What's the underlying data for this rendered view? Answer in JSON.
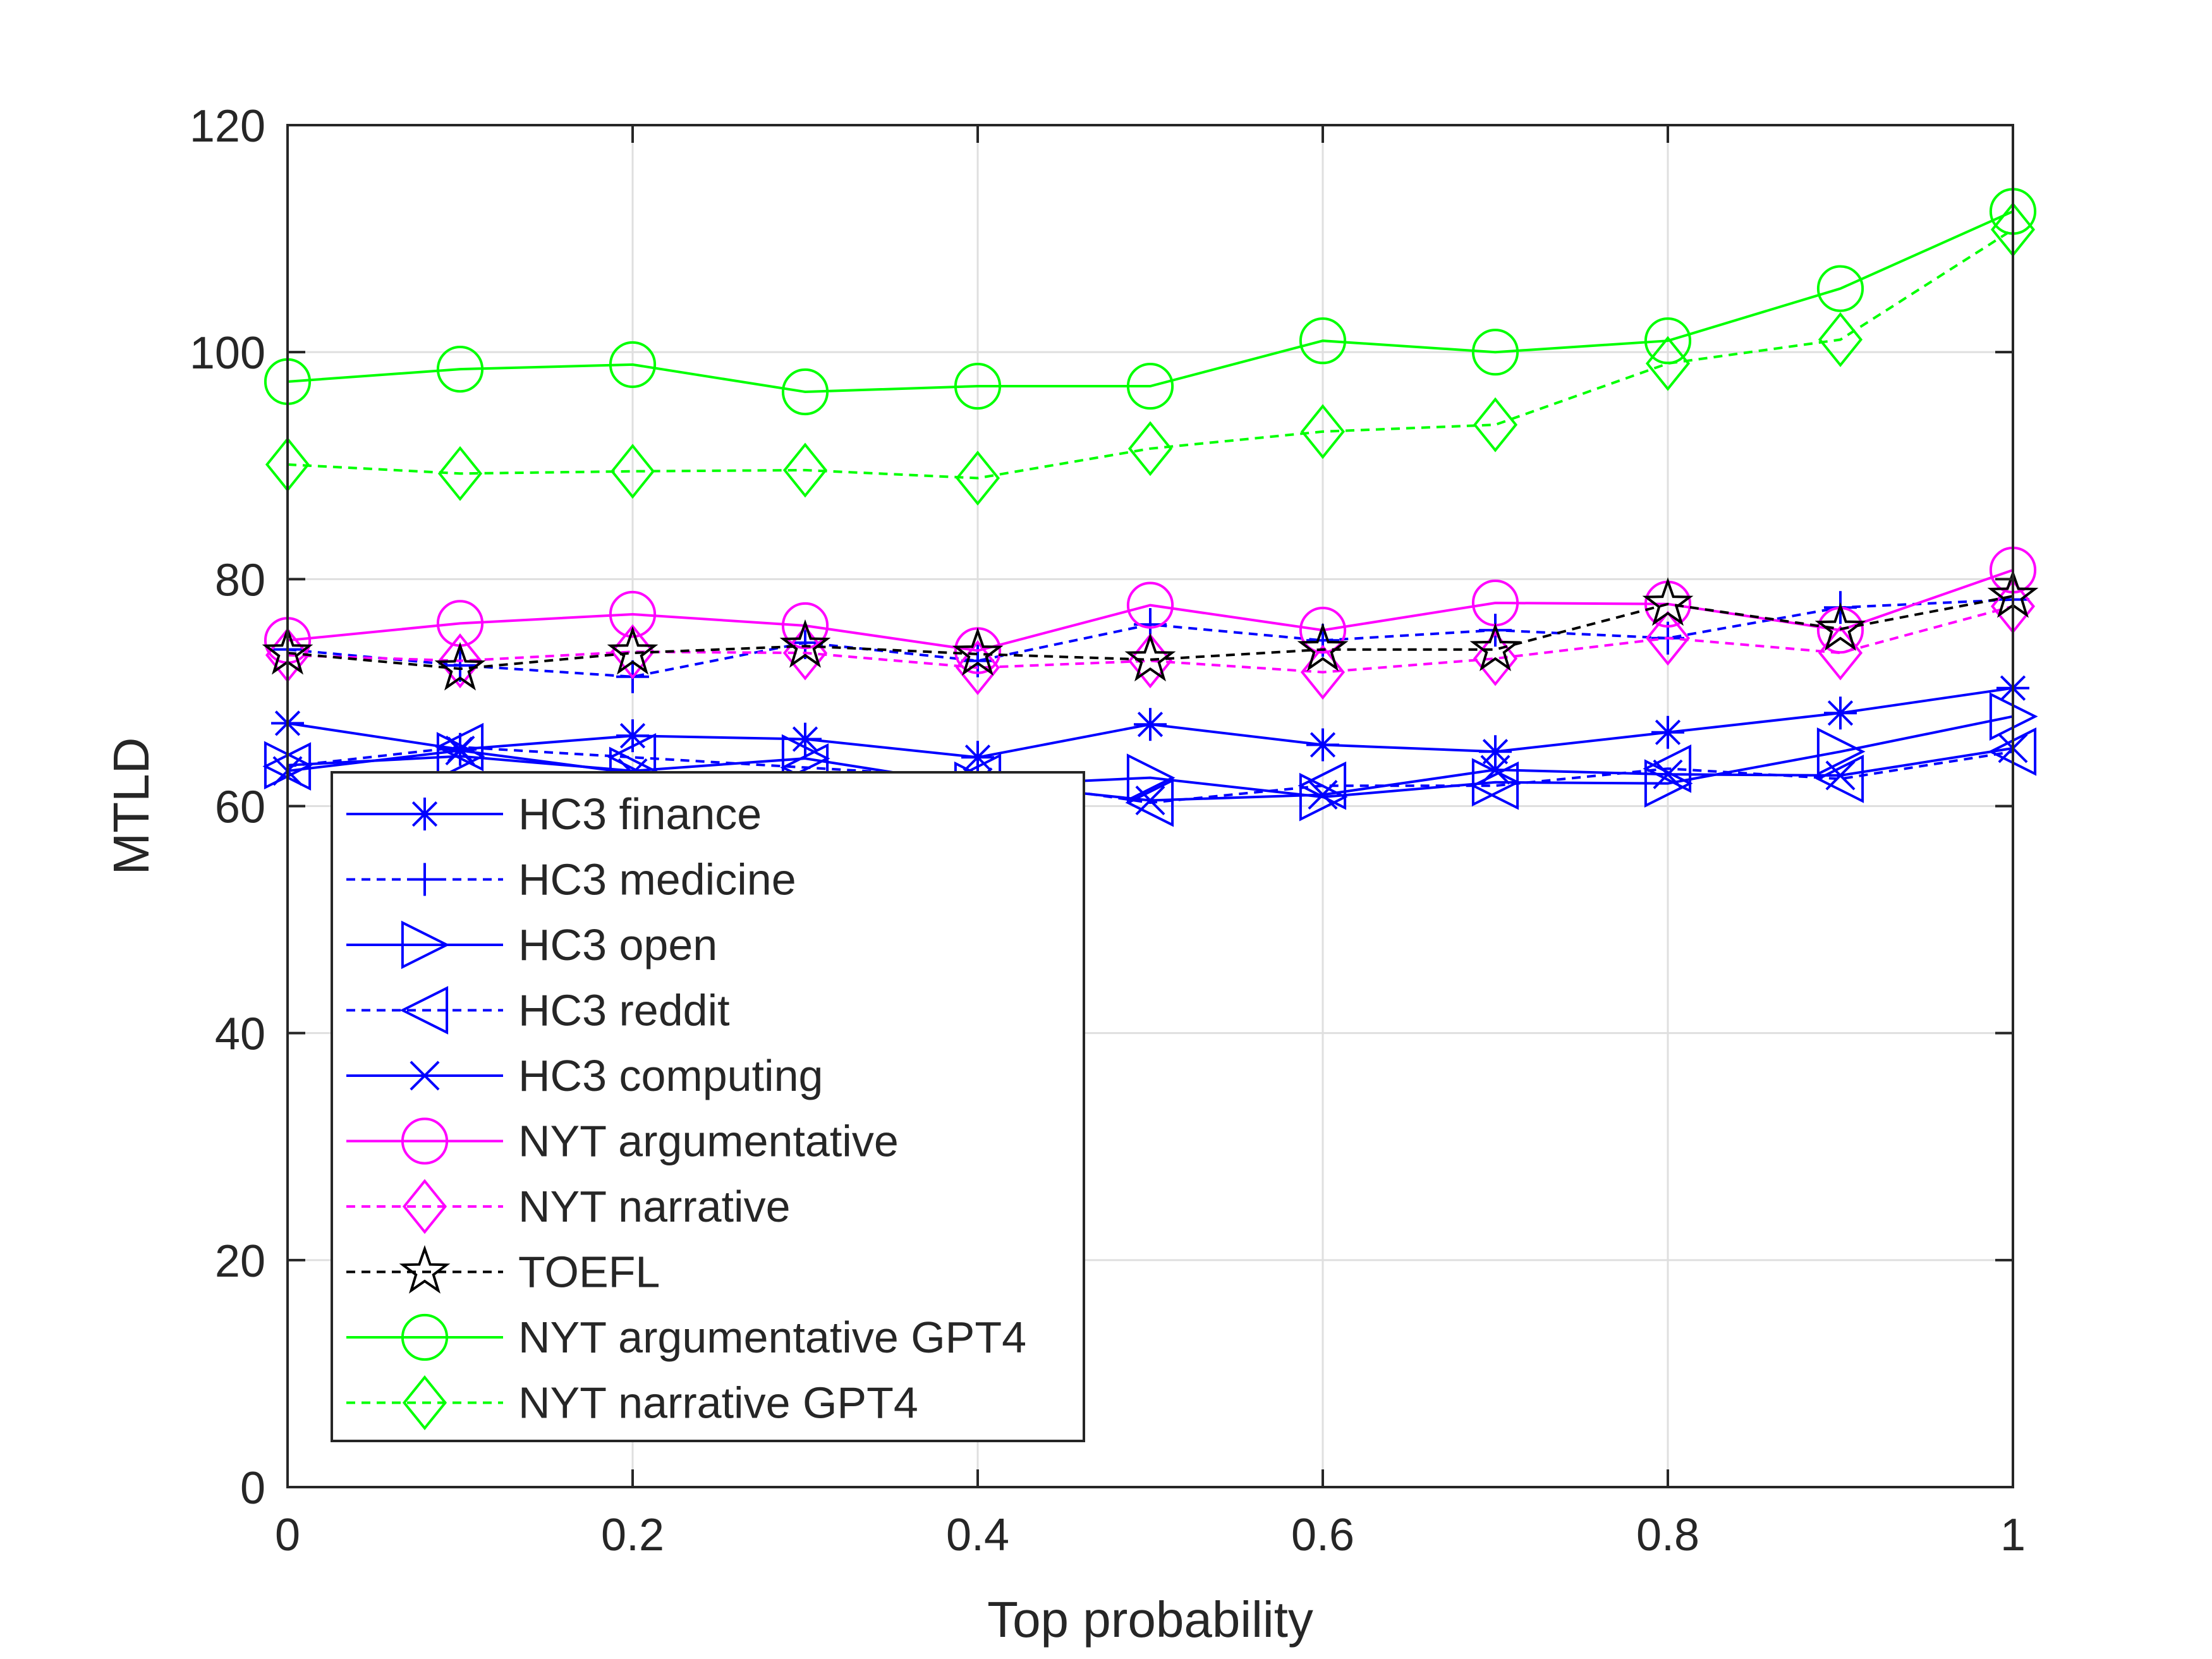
{
  "chart_data": {
    "type": "line",
    "title": "",
    "xlabel": "Top probability",
    "ylabel": "MTLD",
    "xlim": [
      0,
      1
    ],
    "ylim": [
      0,
      120
    ],
    "xticks": [
      0,
      0.2,
      0.4,
      0.6,
      0.8,
      1
    ],
    "xtick_labels": [
      "0",
      "0.2",
      "0.4",
      "0.6",
      "0.8",
      "1"
    ],
    "yticks": [
      0,
      20,
      40,
      60,
      80,
      100,
      120
    ],
    "ytick_labels": [
      "0",
      "20",
      "40",
      "60",
      "80",
      "100",
      "120"
    ],
    "grid": true,
    "legend_position": "lower-left",
    "x": [
      0,
      0.1,
      0.2,
      0.3,
      0.4,
      0.5,
      0.6,
      0.7,
      0.8,
      0.9,
      1
    ],
    "series": [
      {
        "name": "HC3 finance",
        "color": "#0000ff",
        "dash": "solid",
        "marker": "asterisk",
        "values": [
          67.3,
          65.0,
          66.2,
          65.9,
          64.3,
          67.2,
          65.4,
          64.8,
          66.5,
          68.2,
          70.4
        ]
      },
      {
        "name": "HC3 medicine",
        "color": "#0000ff",
        "dash": "dashed",
        "marker": "plus",
        "values": [
          73.8,
          72.4,
          71.4,
          74.4,
          72.8,
          76.0,
          74.6,
          75.5,
          74.8,
          77.5,
          78.2
        ]
      },
      {
        "name": "HC3 open",
        "color": "#0000ff",
        "dash": "solid",
        "marker": "triangle-right",
        "values": [
          63.6,
          64.4,
          63.1,
          64.2,
          61.8,
          62.5,
          60.8,
          62.1,
          62.0,
          64.8,
          67.9
        ]
      },
      {
        "name": "HC3 reddit",
        "color": "#0000ff",
        "dash": "dashed",
        "marker": "triangle-left",
        "values": [
          63.5,
          65.2,
          64.3,
          63.4,
          62.5,
          60.3,
          61.8,
          61.8,
          63.3,
          62.4,
          64.8
        ]
      },
      {
        "name": "HC3 computing",
        "color": "#0000ff",
        "dash": "solid",
        "marker": "x",
        "values": [
          63.1,
          64.9,
          62.9,
          61.6,
          62.1,
          60.5,
          61.0,
          63.2,
          62.8,
          62.7,
          65.1
        ]
      },
      {
        "name": "NYT argumentative",
        "color": "#ff00ff",
        "dash": "solid",
        "marker": "circle",
        "values": [
          74.6,
          76.1,
          76.9,
          75.9,
          73.7,
          77.7,
          75.5,
          77.9,
          77.8,
          75.5,
          80.8
        ]
      },
      {
        "name": "NYT narrative",
        "color": "#ff00ff",
        "dash": "dashed",
        "marker": "diamond",
        "values": [
          73.3,
          72.8,
          73.6,
          73.5,
          72.2,
          72.8,
          71.8,
          73.0,
          74.8,
          73.5,
          77.6
        ]
      },
      {
        "name": "TOEFL",
        "color": "#000000",
        "dash": "dashed",
        "marker": "star",
        "values": [
          73.5,
          72.1,
          73.5,
          74.1,
          73.4,
          72.9,
          73.8,
          73.8,
          77.8,
          75.6,
          78.5
        ]
      },
      {
        "name": "NYT argumentative GPT4",
        "color": "#00ff00",
        "dash": "solid",
        "marker": "circle",
        "values": [
          97.4,
          98.5,
          98.9,
          96.5,
          97.0,
          97.0,
          101.0,
          100.0,
          101.0,
          105.6,
          112.4
        ]
      },
      {
        "name": "NYT narrative GPT4",
        "color": "#00ff00",
        "dash": "dashed",
        "marker": "diamond",
        "values": [
          90.1,
          89.3,
          89.5,
          89.6,
          88.9,
          91.5,
          93.0,
          93.6,
          99.0,
          101.1,
          110.8
        ]
      }
    ]
  }
}
